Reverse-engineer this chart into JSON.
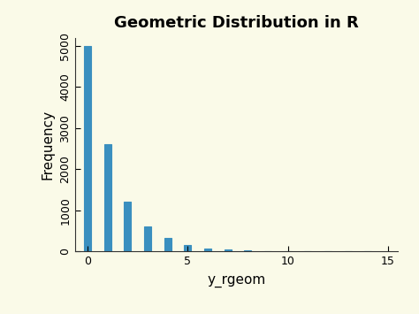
{
  "title": "Geometric Distribution in R",
  "xlabel": "y_rgeom",
  "ylabel": "Frequency",
  "background_color": "#FAFAE8",
  "bar_color": "#3A8FBF",
  "bar_edge_color": "#3A8FBF",
  "categories": [
    0,
    1,
    2,
    3,
    4,
    5,
    6,
    7,
    8,
    9,
    10,
    11,
    12,
    13,
    14
  ],
  "values": [
    5000,
    2600,
    1200,
    600,
    320,
    150,
    75,
    40,
    20,
    10,
    5,
    3,
    2,
    1,
    0
  ],
  "xlim": [
    -0.6,
    15.5
  ],
  "ylim": [
    0,
    5200
  ],
  "yticks": [
    0,
    1000,
    2000,
    3000,
    4000,
    5000
  ],
  "xticks": [
    0,
    5,
    10,
    15
  ],
  "title_fontsize": 13,
  "axis_label_fontsize": 11,
  "tick_fontsize": 9,
  "bar_width": 0.35
}
